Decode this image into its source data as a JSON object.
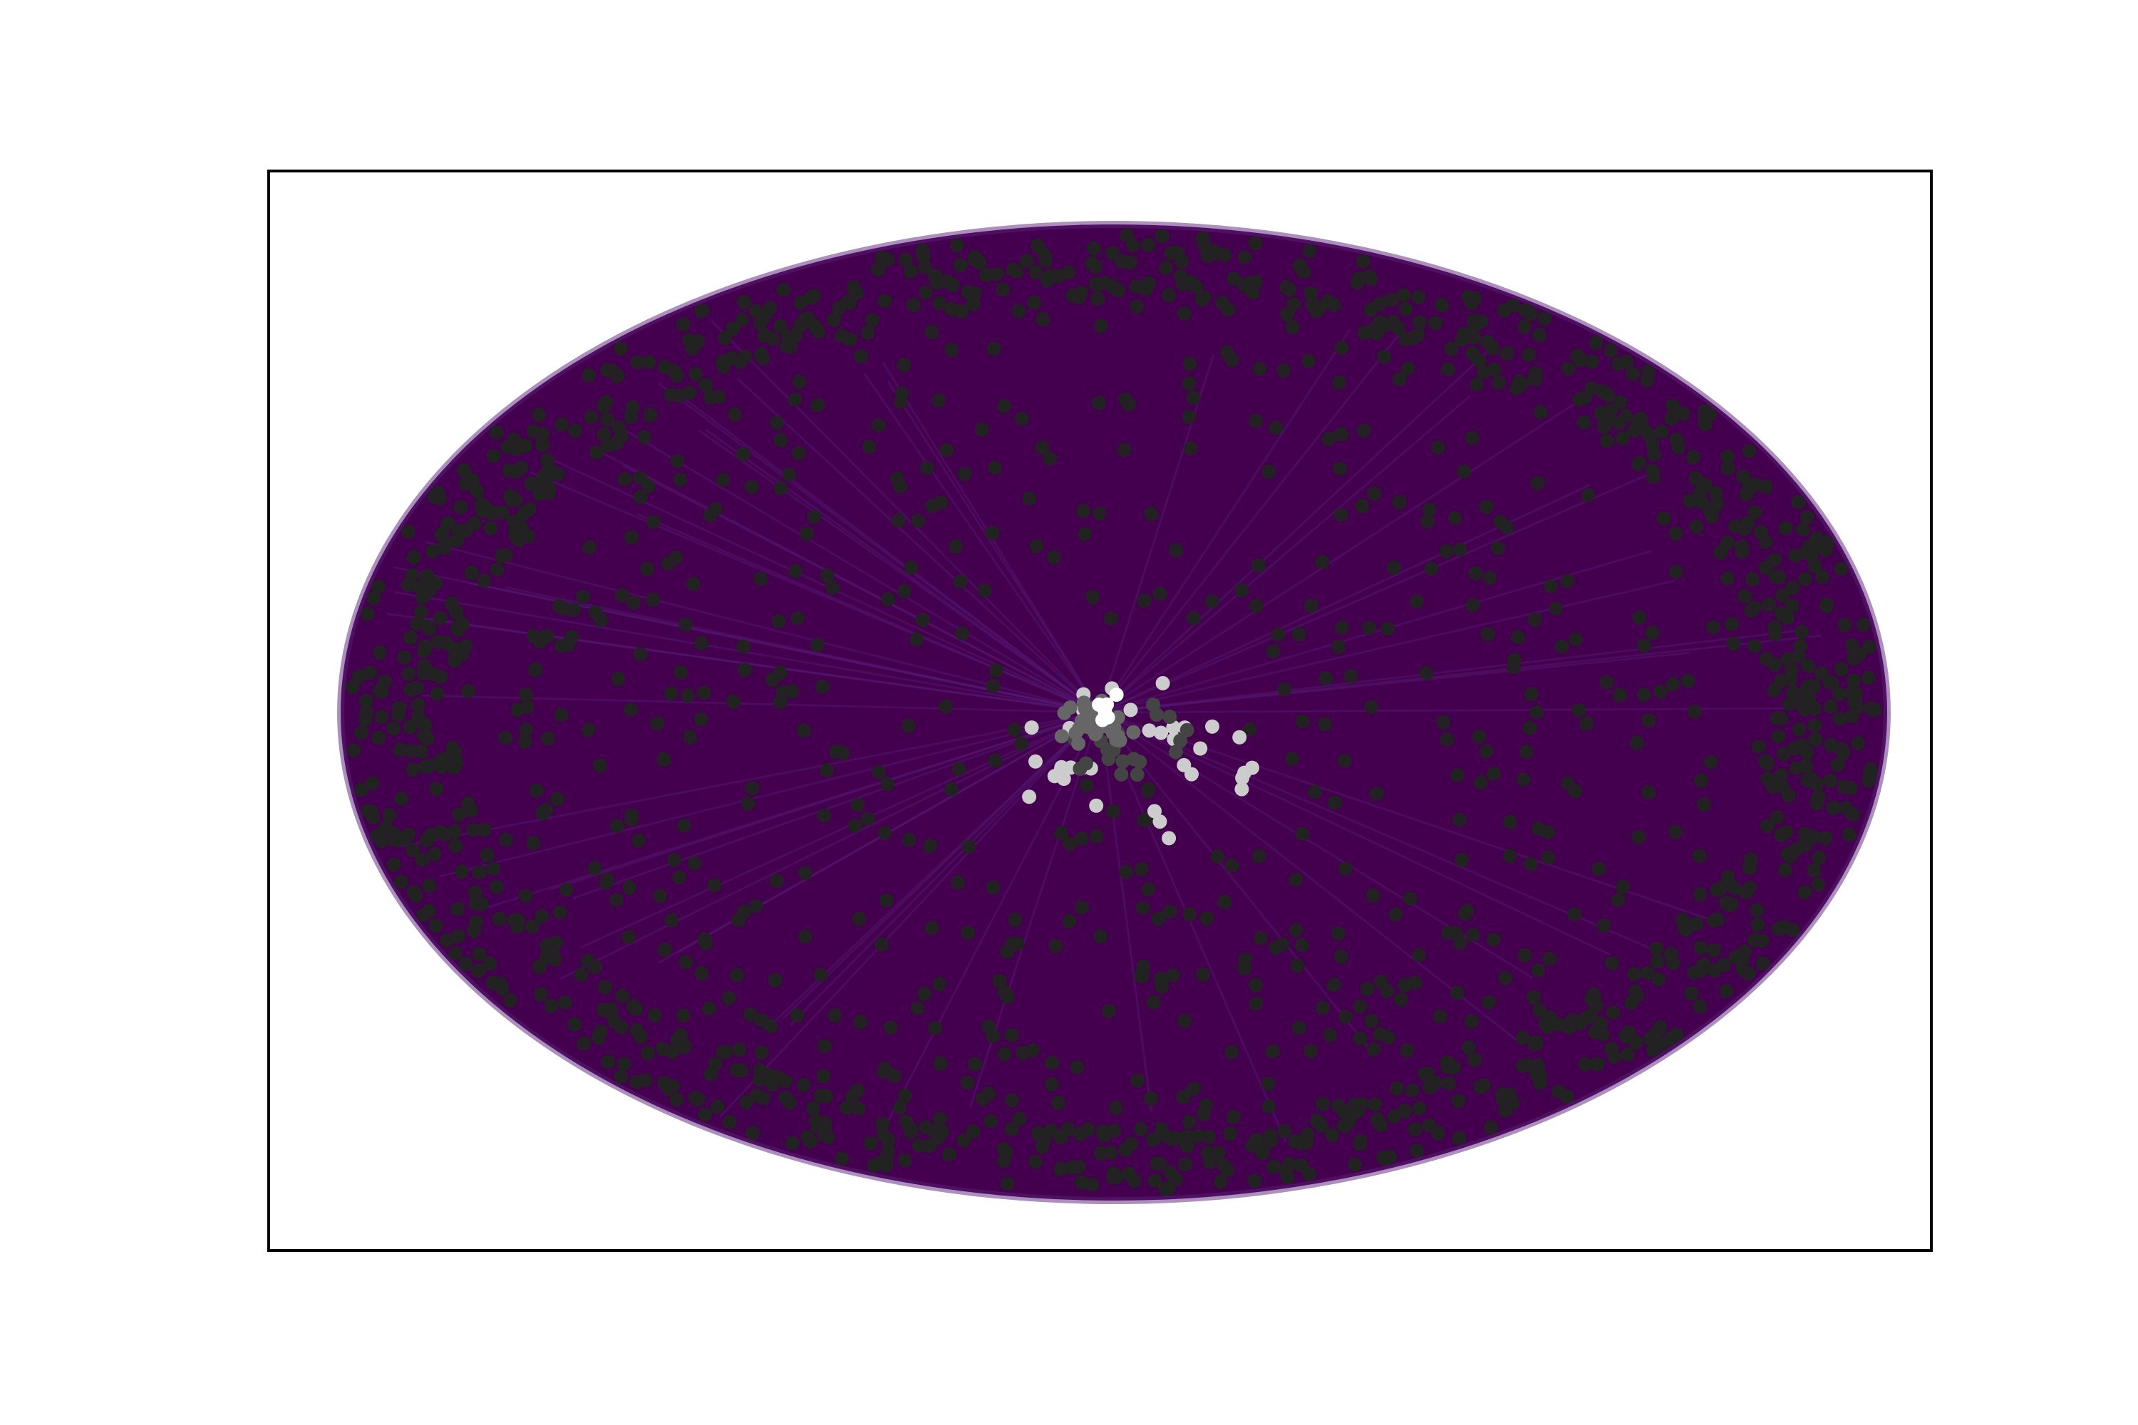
{
  "figure": {
    "background": "#ffffff",
    "frame_color": "#000000",
    "edge_fill_color": "#44004f",
    "edge_line_color": "#5a1f7a",
    "node_colors": {
      "peripheral": "#222222",
      "core_dark": "#444444",
      "core_mid": "#666666",
      "ring_light": "#cccccc",
      "hub": "#ffffff"
    },
    "ticks_visible": false,
    "node_groups": [
      {
        "name": "peripheral",
        "color_key": "peripheral",
        "approx_count": 1500
      },
      {
        "name": "core-dark",
        "color_key": "core_dark",
        "approx_count": 20
      },
      {
        "name": "core-mid",
        "color_key": "core_mid",
        "approx_count": 35
      },
      {
        "name": "ring-light",
        "color_key": "ring_light",
        "approx_count": 35
      },
      {
        "name": "hub",
        "color_key": "hub",
        "approx_count": 6
      }
    ]
  }
}
